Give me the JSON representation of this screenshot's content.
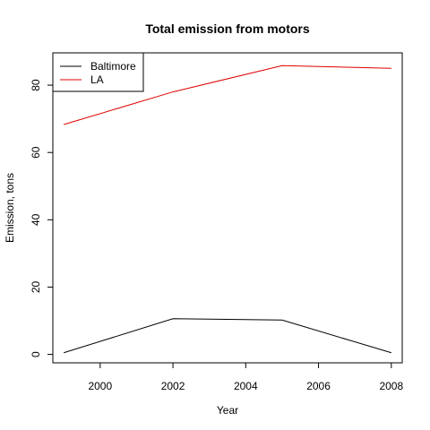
{
  "chart_data": {
    "type": "line",
    "title": "Total emission from motors",
    "xlabel": "Year",
    "ylabel": "Emission, tons",
    "x": [
      1999,
      2002,
      2005,
      2008
    ],
    "xlim": [
      1998.7,
      2008.3
    ],
    "ylim": [
      -2.5,
      89.6
    ],
    "xticks": [
      2000,
      2002,
      2004,
      2006,
      2008
    ],
    "yticks": [
      0,
      20,
      40,
      60,
      80
    ],
    "grid": false,
    "legend_position": "top-left",
    "series": [
      {
        "name": "Baltimore",
        "color": "#000000",
        "values": [
          0.5,
          10.6,
          10.2,
          0.5
        ]
      },
      {
        "name": "LA",
        "color": "#e00000",
        "values": [
          68.3,
          78.0,
          85.8,
          85.0
        ]
      }
    ]
  }
}
